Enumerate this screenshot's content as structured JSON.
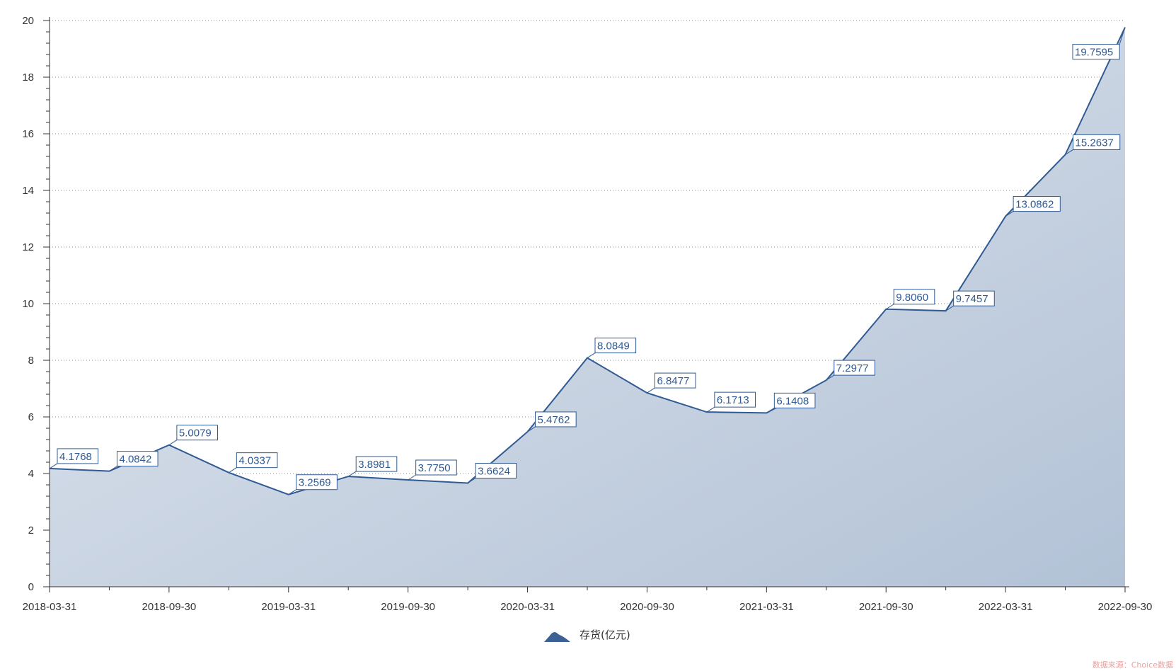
{
  "chart_data": {
    "type": "area",
    "x": [
      "2018-03-31",
      "2018-06-30",
      "2018-09-30",
      "2018-12-31",
      "2019-03-31",
      "2019-06-30",
      "2019-09-30",
      "2019-12-31",
      "2020-03-31",
      "2020-06-30",
      "2020-09-30",
      "2020-12-31",
      "2021-03-31",
      "2021-06-30",
      "2021-09-30",
      "2021-12-31",
      "2022-03-31",
      "2022-06-30",
      "2022-09-30"
    ],
    "x_tick_labels": [
      "2018-03-31",
      "2018-09-30",
      "2019-03-31",
      "2019-09-30",
      "2020-03-31",
      "2020-09-30",
      "2021-03-31",
      "2021-09-30",
      "2022-03-31",
      "2022-09-30"
    ],
    "series": [
      {
        "name": "存货(亿元)",
        "values": [
          4.1768,
          4.0842,
          5.0079,
          4.0337,
          3.2569,
          3.8981,
          3.775,
          3.6624,
          5.4762,
          8.0849,
          6.8477,
          6.1713,
          6.1408,
          7.2977,
          9.806,
          9.7457,
          13.0862,
          15.2637,
          19.7595
        ],
        "labels": [
          "4.1768",
          "4.0842",
          "5.0079",
          "4.0337",
          "3.2569",
          "3.8981",
          "3.7750",
          "3.6624",
          "5.4762",
          "8.0849",
          "6.8477",
          "6.1713",
          "6.1408",
          "7.2977",
          "9.8060",
          "9.7457",
          "13.0862",
          "15.2637",
          "19.7595"
        ]
      }
    ],
    "y_ticks": [
      "0",
      "2",
      "4",
      "6",
      "8",
      "10",
      "12",
      "14",
      "16",
      "18",
      "20"
    ],
    "ylim": [
      0,
      20
    ],
    "grid": true,
    "legend_position": "bottom-center",
    "colors": {
      "line": "#2f5a92",
      "area_top": "#e3e8f0",
      "area_bottom": "#b2c2d6",
      "grid": "#888888",
      "axis": "#333333",
      "source": "#e8a0a0"
    }
  },
  "legend": {
    "label": "存货(亿元)",
    "icon": "mountain-icon"
  },
  "source_text": "数据来源：Choice数据"
}
